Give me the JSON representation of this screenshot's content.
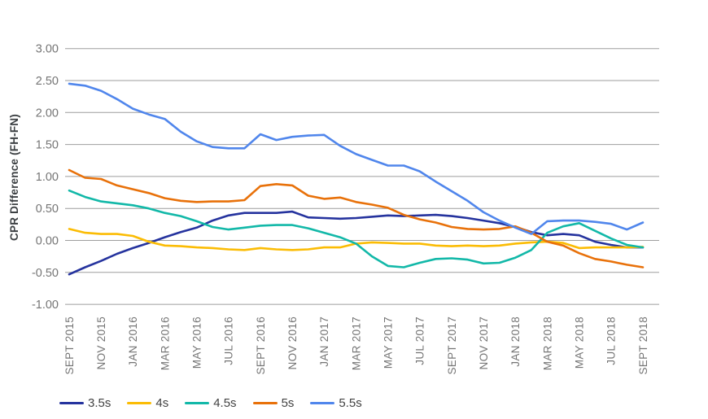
{
  "chart_data": {
    "type": "line",
    "title": "",
    "xlabel": "",
    "ylabel": "CPR Difference (FH-FN)",
    "ylim": [
      -1.0,
      3.0
    ],
    "ytick_step": 0.5,
    "grid": true,
    "legend_position": "bottom",
    "yticks": [
      "3.00",
      "2.50",
      "2.00",
      "1.50",
      "1.00",
      "0.50",
      "0.00",
      "-0.50",
      "-1.00"
    ],
    "x_tick_labels": [
      "SEPT 2015",
      "NOV 2015",
      "JAN 2016",
      "MAR 2016",
      "MAY 2016",
      "JUL 2016",
      "SEPT 2016",
      "NOV 2016",
      "JAN 2017",
      "MAR 2017",
      "MAY 2017",
      "JUL 2017",
      "SEPT 2017",
      "NOV 2017",
      "JAN 2018",
      "MAR 2018",
      "MAY 2018",
      "JUL 2018",
      "SEPT 2018"
    ],
    "points_per_tick": 2,
    "series": [
      {
        "name": "3.5s",
        "color": "#25339e",
        "values": [
          -0.53,
          -0.42,
          -0.32,
          -0.21,
          -0.12,
          -0.04,
          0.05,
          0.13,
          0.2,
          0.31,
          0.39,
          0.43,
          0.43,
          0.43,
          0.45,
          0.36,
          0.35,
          0.34,
          0.35,
          0.37,
          0.39,
          0.38,
          0.39,
          0.4,
          0.38,
          0.35,
          0.31,
          0.27,
          0.21,
          0.13,
          0.08,
          0.1,
          0.08,
          -0.02,
          -0.07,
          -0.11,
          -0.11
        ]
      },
      {
        "name": "4s",
        "color": "#fbbc04",
        "values": [
          0.18,
          0.12,
          0.1,
          0.1,
          0.07,
          -0.02,
          -0.08,
          -0.09,
          -0.11,
          -0.12,
          -0.14,
          -0.15,
          -0.12,
          -0.14,
          -0.15,
          -0.14,
          -0.11,
          -0.11,
          -0.05,
          -0.03,
          -0.04,
          -0.05,
          -0.05,
          -0.08,
          -0.09,
          -0.08,
          -0.09,
          -0.08,
          -0.05,
          -0.03,
          -0.02,
          -0.04,
          -0.12,
          -0.11,
          -0.11,
          -0.11,
          -0.1
        ]
      },
      {
        "name": "4.5s",
        "color": "#12b8a8",
        "values": [
          0.78,
          0.68,
          0.61,
          0.58,
          0.55,
          0.5,
          0.43,
          0.38,
          0.3,
          0.21,
          0.17,
          0.2,
          0.23,
          0.24,
          0.24,
          0.19,
          0.12,
          0.05,
          -0.05,
          -0.25,
          -0.4,
          -0.42,
          -0.35,
          -0.29,
          -0.28,
          -0.3,
          -0.36,
          -0.35,
          -0.27,
          -0.15,
          0.12,
          0.22,
          0.27,
          0.15,
          0.03,
          -0.07,
          -0.11
        ]
      },
      {
        "name": "5s",
        "color": "#e8710a",
        "values": [
          1.1,
          0.98,
          0.96,
          0.86,
          0.8,
          0.74,
          0.66,
          0.62,
          0.6,
          0.61,
          0.61,
          0.63,
          0.85,
          0.88,
          0.86,
          0.7,
          0.65,
          0.67,
          0.6,
          0.56,
          0.51,
          0.4,
          0.33,
          0.28,
          0.21,
          0.18,
          0.17,
          0.18,
          0.22,
          0.12,
          -0.02,
          -0.08,
          -0.2,
          -0.29,
          -0.33,
          -0.38,
          -0.42
        ]
      },
      {
        "name": "5.5s",
        "color": "#5086ec",
        "values": [
          2.45,
          2.42,
          2.34,
          2.21,
          2.06,
          1.97,
          1.9,
          1.7,
          1.55,
          1.46,
          1.44,
          1.44,
          1.66,
          1.57,
          1.62,
          1.64,
          1.65,
          1.48,
          1.35,
          1.26,
          1.17,
          1.17,
          1.08,
          0.92,
          0.77,
          0.62,
          0.44,
          0.31,
          0.2,
          0.1,
          0.3,
          0.31,
          0.31,
          0.29,
          0.26,
          0.17,
          0.28
        ]
      }
    ]
  },
  "colors": {
    "background": "#ffffff",
    "gridline": "#9e9e9e",
    "tick_label": "#757575",
    "axis_title": "#3c4043",
    "legend_label": "#424242"
  }
}
